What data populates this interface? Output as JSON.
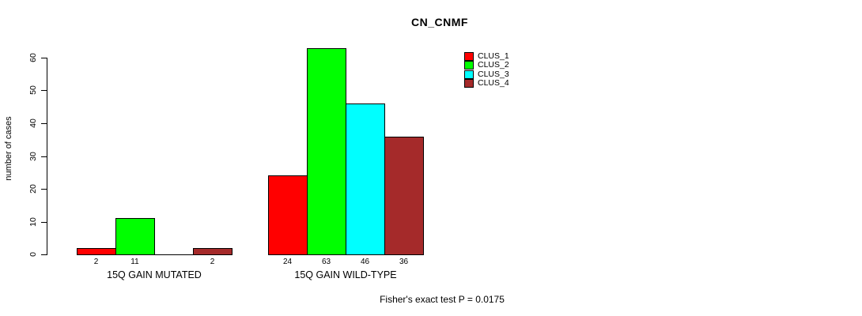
{
  "chart_data": {
    "type": "bar",
    "title": "CN_CNMF",
    "ylabel": "number of cases",
    "xlabel": "",
    "ylim": [
      0,
      60
    ],
    "yticks": [
      0,
      10,
      20,
      30,
      40,
      50,
      60
    ],
    "grid": false,
    "legend_position": "top-right",
    "categories": [
      "15Q GAIN MUTATED",
      "15Q GAIN WILD-TYPE"
    ],
    "series": [
      {
        "name": "CLUS_1",
        "color": "#ff0000",
        "values": [
          2,
          24
        ]
      },
      {
        "name": "CLUS_2",
        "color": "#00ff00",
        "values": [
          11,
          63
        ]
      },
      {
        "name": "CLUS_3",
        "color": "#00ffff",
        "values": [
          0,
          46
        ]
      },
      {
        "name": "CLUS_4",
        "color": "#a52a2a",
        "values": [
          2,
          36
        ]
      }
    ],
    "bar_value_labels": [
      [
        "2",
        "11",
        "",
        "2"
      ],
      [
        "24",
        "63",
        "46",
        "36"
      ]
    ],
    "footnote": "Fisher's exact test P = 0.0175"
  }
}
